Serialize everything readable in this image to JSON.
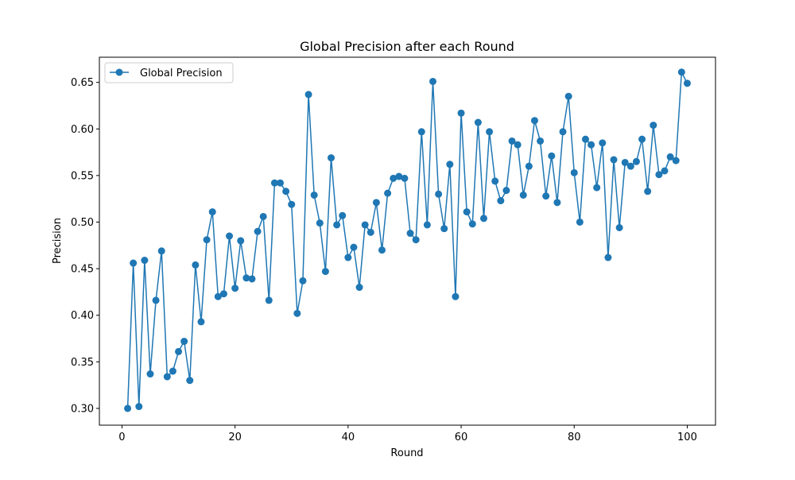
{
  "colors": {
    "series": "#1f77b4",
    "axis": "#000000",
    "background": "#ffffff",
    "legend_border": "#cccccc"
  },
  "chart_data": {
    "type": "line",
    "title": "Global Precision after each Round",
    "xlabel": "Round",
    "ylabel": "Precision",
    "xlim": [
      -4.0,
      105.0
    ],
    "ylim": [
      0.282,
      0.677
    ],
    "xticks": [
      0,
      20,
      40,
      60,
      80,
      100
    ],
    "yticks": [
      0.3,
      0.35,
      0.4,
      0.45,
      0.5,
      0.55,
      0.6,
      0.65
    ],
    "xtick_labels": [
      "0",
      "20",
      "40",
      "60",
      "80",
      "100"
    ],
    "ytick_labels": [
      "0.30",
      "0.35",
      "0.40",
      "0.45",
      "0.50",
      "0.55",
      "0.60",
      "0.65"
    ],
    "grid": false,
    "legend_position": "upper left",
    "marker": "circle",
    "series": [
      {
        "name": "Global Precision",
        "x": [
          1,
          2,
          3,
          4,
          5,
          6,
          7,
          8,
          9,
          10,
          11,
          12,
          13,
          14,
          15,
          16,
          17,
          18,
          19,
          20,
          21,
          22,
          23,
          24,
          25,
          26,
          27,
          28,
          29,
          30,
          31,
          32,
          33,
          34,
          35,
          36,
          37,
          38,
          39,
          40,
          41,
          42,
          43,
          44,
          45,
          46,
          47,
          48,
          49,
          50,
          51,
          52,
          53,
          54,
          55,
          56,
          57,
          58,
          59,
          60,
          61,
          62,
          63,
          64,
          65,
          66,
          67,
          68,
          69,
          70,
          71,
          72,
          73,
          74,
          75,
          76,
          77,
          78,
          79,
          80,
          81,
          82,
          83,
          84,
          85,
          86,
          87,
          88,
          89,
          90,
          91,
          92,
          93,
          94,
          95,
          96,
          97,
          98,
          99,
          100
        ],
        "values": [
          0.3,
          0.456,
          0.302,
          0.459,
          0.337,
          0.416,
          0.469,
          0.334,
          0.34,
          0.361,
          0.372,
          0.33,
          0.454,
          0.393,
          0.481,
          0.511,
          0.42,
          0.423,
          0.485,
          0.429,
          0.48,
          0.44,
          0.439,
          0.49,
          0.506,
          0.416,
          0.542,
          0.542,
          0.533,
          0.519,
          0.402,
          0.437,
          0.637,
          0.529,
          0.499,
          0.447,
          0.569,
          0.497,
          0.507,
          0.462,
          0.473,
          0.43,
          0.497,
          0.489,
          0.521,
          0.47,
          0.531,
          0.547,
          0.549,
          0.547,
          0.488,
          0.481,
          0.597,
          0.497,
          0.651,
          0.53,
          0.493,
          0.562,
          0.42,
          0.617,
          0.511,
          0.498,
          0.607,
          0.504,
          0.597,
          0.544,
          0.523,
          0.534,
          0.587,
          0.583,
          0.529,
          0.56,
          0.609,
          0.587,
          0.528,
          0.571,
          0.521,
          0.597,
          0.635,
          0.553,
          0.5,
          0.589,
          0.583,
          0.537,
          0.585,
          0.462,
          0.567,
          0.494,
          0.564,
          0.56,
          0.565,
          0.589,
          0.533,
          0.604,
          0.551,
          0.555,
          0.57,
          0.566,
          0.661,
          0.649
        ]
      }
    ]
  }
}
